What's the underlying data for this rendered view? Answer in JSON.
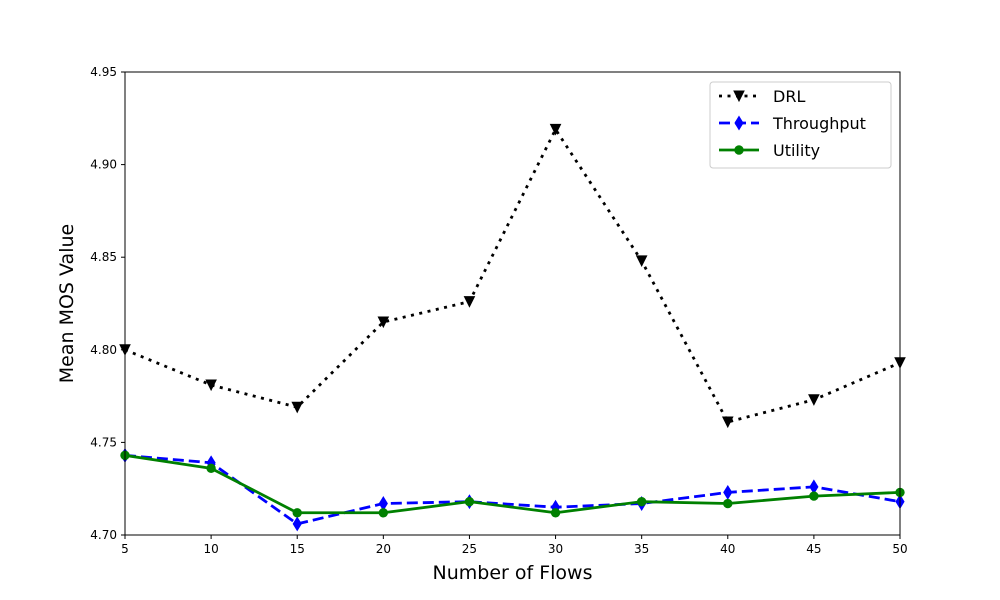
{
  "chart_data": {
    "type": "line",
    "title": "",
    "xlabel": "Number of Flows",
    "ylabel": "Mean MOS Value",
    "x": [
      5,
      10,
      15,
      20,
      25,
      30,
      35,
      40,
      45,
      50
    ],
    "xlim": [
      5,
      50
    ],
    "ylim": [
      4.7,
      4.95
    ],
    "xticks": [
      "5",
      "10",
      "15",
      "20",
      "25",
      "30",
      "35",
      "40",
      "45",
      "50"
    ],
    "yticks": [
      "4.70",
      "4.75",
      "4.80",
      "4.85",
      "4.90",
      "4.95"
    ],
    "grid": false,
    "legend_position": "top-right",
    "series": [
      {
        "name": "DRL",
        "values": [
          4.8,
          4.781,
          4.769,
          4.815,
          4.826,
          4.919,
          4.848,
          4.761,
          4.773,
          4.793
        ],
        "color": "#000000",
        "line_style": "dotted",
        "marker": "triangle-down"
      },
      {
        "name": "Throughput",
        "values": [
          4.743,
          4.739,
          4.706,
          4.717,
          4.718,
          4.715,
          4.717,
          4.723,
          4.726,
          4.718
        ],
        "color": "#0000ff",
        "line_style": "dashed",
        "marker": "diamond"
      },
      {
        "name": "Utility",
        "values": [
          4.743,
          4.736,
          4.712,
          4.712,
          4.718,
          4.712,
          4.718,
          4.717,
          4.721,
          4.723
        ],
        "color": "#008000",
        "line_style": "solid",
        "marker": "circle"
      }
    ]
  }
}
